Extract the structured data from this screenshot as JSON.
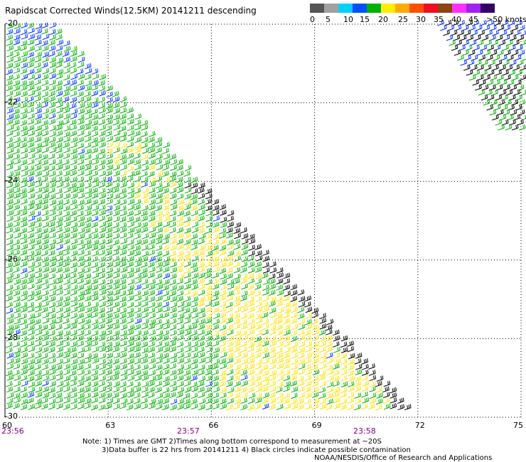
{
  "chart_data": {
    "type": "wind-barb-map",
    "title": "Rapidscat Corrected Winds(12.5KM) 20141211 descending",
    "legend": {
      "labels": [
        "0",
        "5",
        "10",
        "15",
        "20",
        "25",
        "30",
        "35",
        "40",
        "45",
        ">50 knots"
      ],
      "colors": [
        "#555555",
        "#a0a0a0",
        "#00d0ff",
        "#0050ff",
        "#00b000",
        "#ffee00",
        "#ffaa00",
        "#ff5000",
        "#ee1020",
        "#8b4513",
        "#ff30ff",
        "#a020f0",
        "#330066"
      ]
    },
    "y_ticks": [
      "-20",
      "-22",
      "-24",
      "-26",
      "-28",
      "-30"
    ],
    "x_ticks": [
      "60",
      "63",
      "66",
      "69",
      "72",
      "75"
    ],
    "time_labels": [
      "23:56",
      "23:57",
      "23:58"
    ],
    "xlim": [
      60,
      75
    ],
    "ylim": [
      -30,
      -20
    ],
    "grid": "dotted",
    "swath_regions": [
      {
        "name": "main-swath",
        "color_fraction": {
          "green": 0.78,
          "yellow": 0.13,
          "blue": 0.05,
          "black": 0.04
        }
      },
      {
        "name": "upper-right-swath",
        "color_fraction": {
          "blue": 0.3,
          "black": 0.35,
          "green": 0.35
        }
      }
    ],
    "notes": [
      "Note: 1) Times are GMT 2)Times along bottom correspond to measurement at ~20S",
      "3)Data buffer is 22 hrs from 20141211 4) Black circles indicate possible contamination",
      "NOAA/NESDIS/Office of Research and Applications"
    ]
  }
}
